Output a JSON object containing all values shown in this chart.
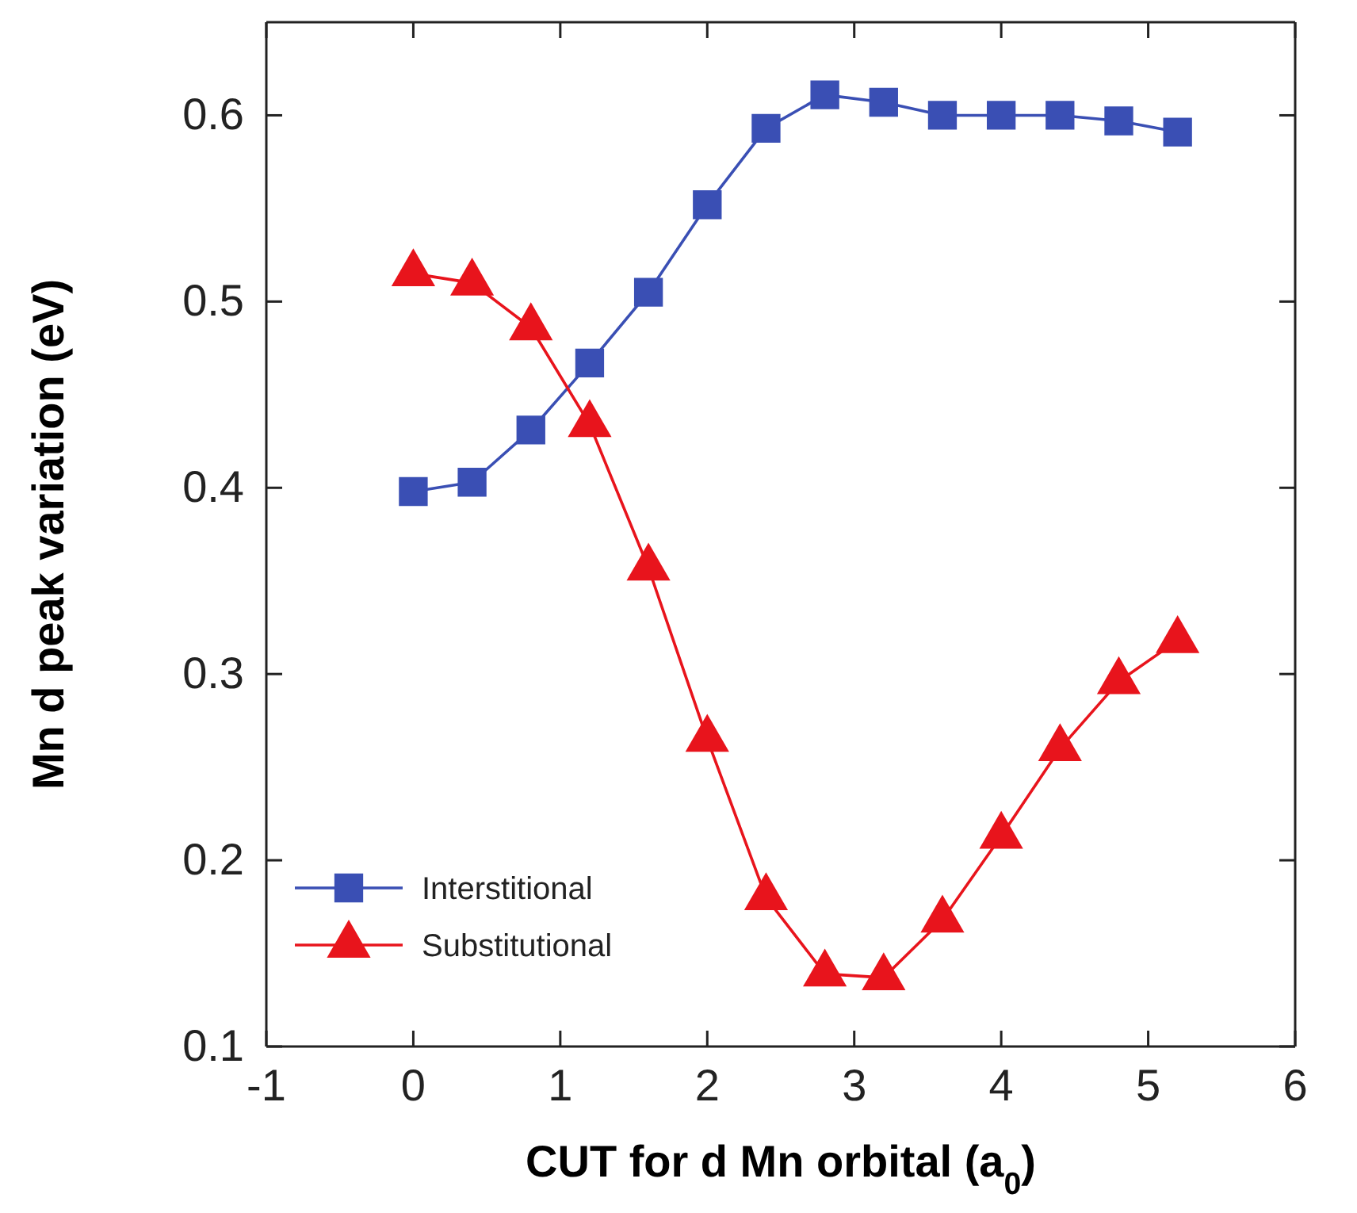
{
  "chart_data": {
    "type": "line",
    "xlabel": "CUT for d Mn orbital (a$_{0}$)",
    "ylabel": "Mn d peak variation  (eV)",
    "x": [
      0,
      0.4,
      0.8,
      1.2,
      1.6,
      2.0,
      2.4,
      2.8,
      3.2,
      3.6,
      4.0,
      4.4,
      4.8,
      5.2
    ],
    "series": [
      {
        "name": "Interstitional",
        "color": "#3a4fb4",
        "marker": "square",
        "values": [
          0.398,
          0.403,
          0.431,
          0.467,
          0.505,
          0.552,
          0.593,
          0.611,
          0.607,
          0.6,
          0.6,
          0.6,
          0.597,
          0.591
        ]
      },
      {
        "name": "Substitutional",
        "color": "#e8141c",
        "marker": "triangle",
        "values": [
          0.515,
          0.51,
          0.486,
          0.434,
          0.357,
          0.265,
          0.18,
          0.139,
          0.137,
          0.168,
          0.213,
          0.26,
          0.296,
          0.318
        ]
      }
    ],
    "xlim": [
      -1,
      6
    ],
    "xticks": [
      -1,
      0,
      1,
      2,
      3,
      4,
      5,
      6
    ],
    "ylim": [
      0.1,
      0.65
    ],
    "yticks": [
      0.1,
      0.2,
      0.3,
      0.4,
      0.5,
      0.6
    ],
    "grid": false,
    "legend": "bottom left",
    "line_style": "solid"
  }
}
